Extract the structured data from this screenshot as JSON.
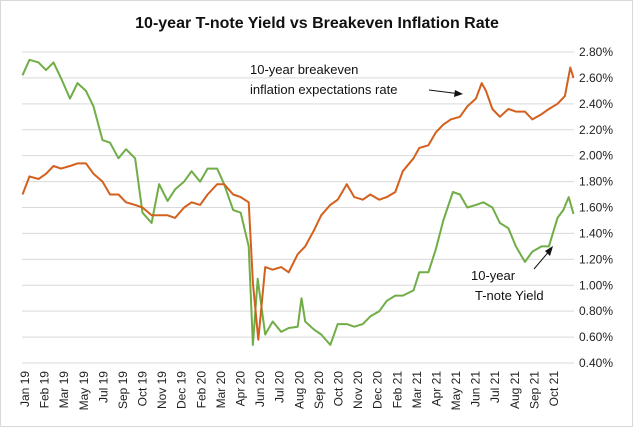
{
  "chart_data": {
    "type": "line",
    "title": "10-year T-note Yield vs Breakeven Inflation Rate",
    "xlabel": "",
    "ylabel": "",
    "x_tick_labels": [
      "Jan 19",
      "Feb 19",
      "Mar 19",
      "May 19",
      "Jul 19",
      "Sep 19",
      "Oct 19",
      "Nov 19",
      "Dec 19",
      "Feb 20",
      "Mar 20",
      "Apr 20",
      "Jun 20",
      "Jul 20",
      "Aug 20",
      "Sep 20",
      "Oct 20",
      "Nov 20",
      "Dec 20",
      "Feb 21",
      "Mar 21",
      "Apr 21",
      "May 21",
      "Jun 21",
      "Jul 21",
      "Aug 21",
      "Sep 21",
      "Oct 21"
    ],
    "y_tick_labels": [
      "0.40%",
      "0.60%",
      "0.80%",
      "1.00%",
      "1.20%",
      "1.40%",
      "1.60%",
      "1.80%",
      "2.00%",
      "2.20%",
      "2.40%",
      "2.60%",
      "2.80%"
    ],
    "ylim": [
      0.4,
      2.8
    ],
    "grid": true,
    "annotations": [
      {
        "lines": [
          "10-year breakeven",
          "inflation expectations rate"
        ],
        "target_series": "breakeven"
      },
      {
        "lines": [
          "10-year",
          "T-note Yield"
        ],
        "target_series": "yield"
      }
    ],
    "series": [
      {
        "id": "yield",
        "color": "#70ad47",
        "x": [
          "2019-01-02",
          "2019-01-15",
          "2019-02-01",
          "2019-02-15",
          "2019-03-01",
          "2019-03-15",
          "2019-04-01",
          "2019-04-15",
          "2019-05-01",
          "2019-05-15",
          "2019-06-01",
          "2019-06-15",
          "2019-07-01",
          "2019-07-15",
          "2019-08-01",
          "2019-08-15",
          "2019-09-01",
          "2019-09-15",
          "2019-10-01",
          "2019-10-15",
          "2019-11-01",
          "2019-11-15",
          "2019-12-01",
          "2019-12-15",
          "2020-01-02",
          "2020-01-15",
          "2020-02-01",
          "2020-02-15",
          "2020-03-01",
          "2020-03-09",
          "2020-03-18",
          "2020-04-01",
          "2020-04-15",
          "2020-05-01",
          "2020-05-15",
          "2020-06-01",
          "2020-06-08",
          "2020-06-15",
          "2020-07-01",
          "2020-07-15",
          "2020-08-01",
          "2020-08-15",
          "2020-09-01",
          "2020-09-15",
          "2020-10-01",
          "2020-10-15",
          "2020-11-01",
          "2020-11-15",
          "2020-12-01",
          "2020-12-15",
          "2021-01-04",
          "2021-01-15",
          "2021-02-01",
          "2021-02-15",
          "2021-03-01",
          "2021-03-19",
          "2021-04-01",
          "2021-04-15",
          "2021-05-01",
          "2021-05-15",
          "2021-06-01",
          "2021-06-15",
          "2021-07-01",
          "2021-07-15",
          "2021-08-01",
          "2021-08-15",
          "2021-09-01",
          "2021-09-15",
          "2021-10-01",
          "2021-10-12",
          "2021-10-22",
          "2021-10-31"
        ],
        "values": [
          2.62,
          2.74,
          2.72,
          2.66,
          2.72,
          2.6,
          2.44,
          2.56,
          2.5,
          2.38,
          2.12,
          2.1,
          1.98,
          2.05,
          1.98,
          1.56,
          1.48,
          1.78,
          1.65,
          1.74,
          1.8,
          1.88,
          1.8,
          1.9,
          1.9,
          1.78,
          1.58,
          1.56,
          1.3,
          0.54,
          1.05,
          0.62,
          0.72,
          0.64,
          0.67,
          0.68,
          0.9,
          0.72,
          0.66,
          0.62,
          0.54,
          0.7,
          0.7,
          0.68,
          0.7,
          0.76,
          0.8,
          0.88,
          0.92,
          0.92,
          0.96,
          1.1,
          1.1,
          1.28,
          1.5,
          1.72,
          1.7,
          1.6,
          1.62,
          1.64,
          1.6,
          1.48,
          1.44,
          1.3,
          1.18,
          1.26,
          1.3,
          1.3,
          1.52,
          1.58,
          1.68,
          1.55
        ]
      },
      {
        "id": "breakeven",
        "color": "#d3601d",
        "x": [
          "2019-01-02",
          "2019-01-15",
          "2019-02-01",
          "2019-02-15",
          "2019-03-01",
          "2019-03-15",
          "2019-04-01",
          "2019-04-15",
          "2019-05-01",
          "2019-05-15",
          "2019-06-01",
          "2019-06-15",
          "2019-07-01",
          "2019-07-15",
          "2019-08-01",
          "2019-08-15",
          "2019-09-01",
          "2019-09-15",
          "2019-10-01",
          "2019-10-15",
          "2019-11-01",
          "2019-11-15",
          "2019-12-01",
          "2019-12-15",
          "2020-01-02",
          "2020-01-15",
          "2020-02-01",
          "2020-02-15",
          "2020-03-01",
          "2020-03-09",
          "2020-03-19",
          "2020-04-01",
          "2020-04-15",
          "2020-05-01",
          "2020-05-15",
          "2020-06-01",
          "2020-06-15",
          "2020-07-01",
          "2020-07-15",
          "2020-08-01",
          "2020-08-15",
          "2020-09-01",
          "2020-09-15",
          "2020-10-01",
          "2020-10-15",
          "2020-11-01",
          "2020-11-15",
          "2020-12-01",
          "2020-12-15",
          "2021-01-04",
          "2021-01-15",
          "2021-02-01",
          "2021-02-15",
          "2021-03-01",
          "2021-03-15",
          "2021-04-01",
          "2021-04-15",
          "2021-05-01",
          "2021-05-12",
          "2021-05-20",
          "2021-06-01",
          "2021-06-15",
          "2021-07-01",
          "2021-07-15",
          "2021-08-01",
          "2021-08-15",
          "2021-09-01",
          "2021-09-15",
          "2021-10-01",
          "2021-10-15",
          "2021-10-25",
          "2021-10-31"
        ],
        "values": [
          1.7,
          1.84,
          1.82,
          1.86,
          1.92,
          1.9,
          1.92,
          1.94,
          1.94,
          1.86,
          1.8,
          1.7,
          1.7,
          1.64,
          1.62,
          1.6,
          1.54,
          1.54,
          1.54,
          1.52,
          1.6,
          1.64,
          1.62,
          1.7,
          1.78,
          1.78,
          1.7,
          1.68,
          1.64,
          1.02,
          0.58,
          1.14,
          1.12,
          1.14,
          1.1,
          1.24,
          1.3,
          1.42,
          1.54,
          1.62,
          1.66,
          1.78,
          1.68,
          1.66,
          1.7,
          1.66,
          1.68,
          1.72,
          1.88,
          1.98,
          2.06,
          2.08,
          2.18,
          2.24,
          2.28,
          2.3,
          2.38,
          2.44,
          2.56,
          2.5,
          2.36,
          2.3,
          2.36,
          2.34,
          2.34,
          2.28,
          2.32,
          2.36,
          2.4,
          2.46,
          2.68,
          2.6
        ]
      }
    ]
  }
}
